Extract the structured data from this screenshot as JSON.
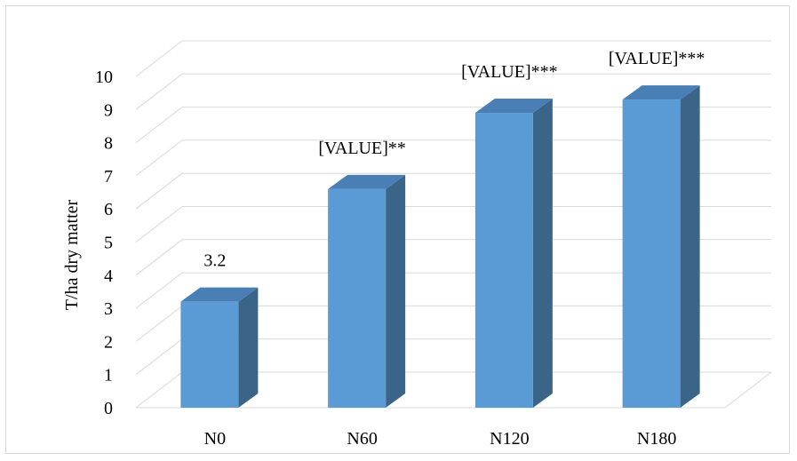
{
  "chart_data": {
    "type": "bar",
    "style": "3d-column",
    "categories": [
      "N0",
      "N60",
      "N120",
      "N180"
    ],
    "values": [
      3.2,
      6.6,
      8.9,
      9.3
    ],
    "data_labels": [
      "3.2",
      "[VALUE]**",
      "[VALUE]***",
      "[VALUE]***"
    ],
    "title": "",
    "xlabel": "",
    "ylabel": "T/ha dry matter",
    "ylim": [
      0,
      10
    ],
    "yticks": [
      0,
      1,
      2,
      3,
      4,
      5,
      6,
      7,
      8,
      9,
      10
    ],
    "grid": true,
    "legend": "none",
    "colors": {
      "bar_front": "#5b9bd5",
      "bar_top": "#4a7fb5",
      "bar_side": "#3a6589",
      "grid": "#d9d9d9",
      "border": "#d9d9d9"
    }
  }
}
